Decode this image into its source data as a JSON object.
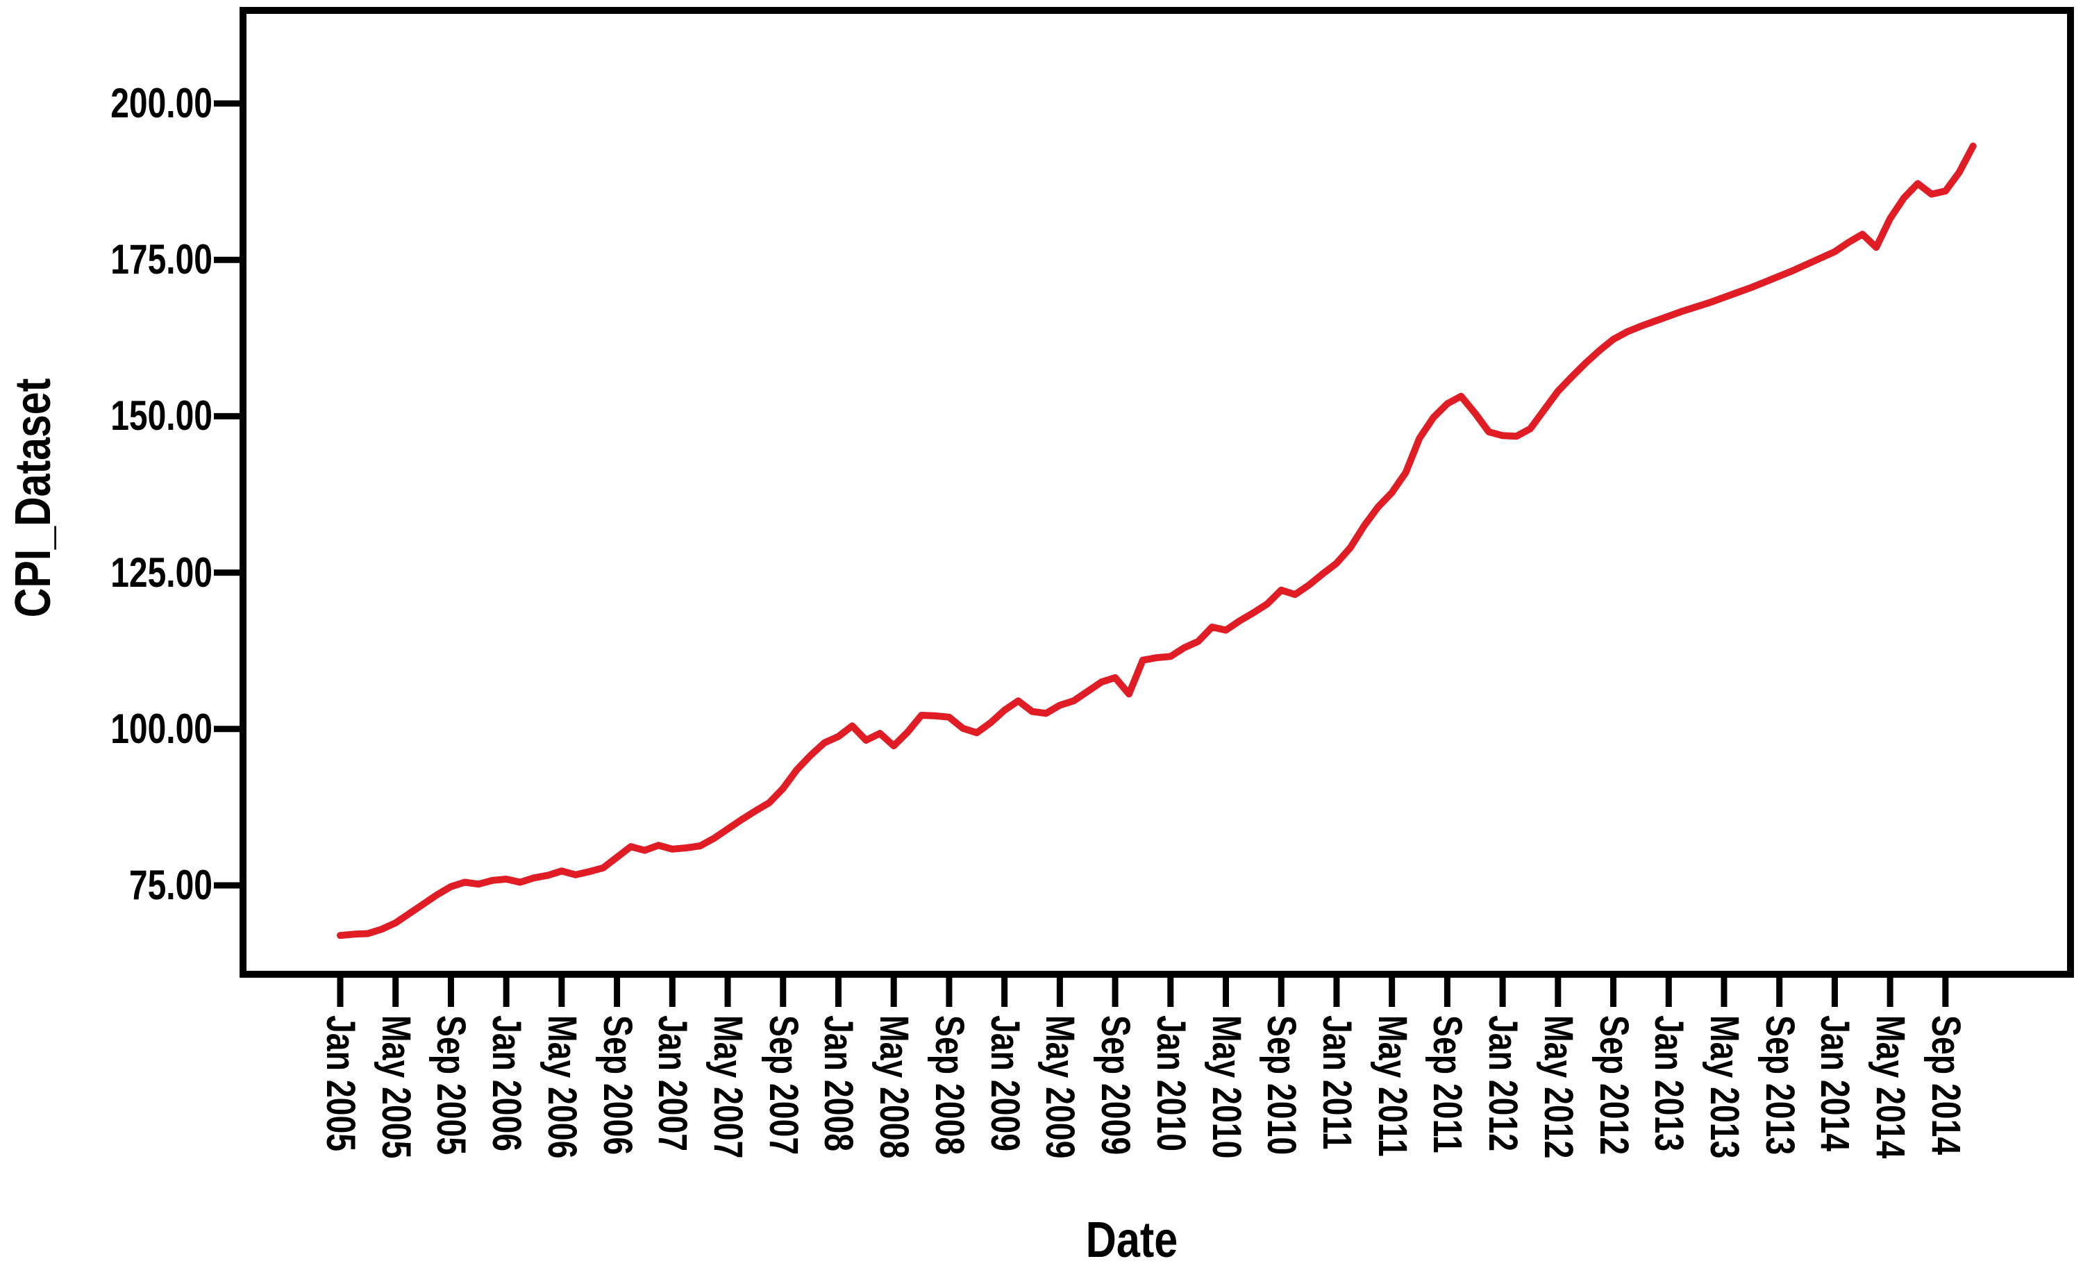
{
  "figure": {
    "background_color": "#ffffff",
    "frame_color": "#000000",
    "text_color": "#000000",
    "y_axis": {
      "title": "CPI_Dataset",
      "tick_labels": [
        "200.00",
        "175.00",
        "150.00",
        "125.00",
        "100.00",
        "75.00"
      ],
      "tick_values": [
        200,
        175,
        150,
        125,
        100,
        75
      ]
    },
    "x_axis": {
      "title": "Date",
      "tick_labels": [
        "Jan 2005",
        "May 2005",
        "Sep 2005",
        "Jan 2006",
        "May 2006",
        "Sep 2006",
        "Jan 2007",
        "May 2007",
        "Sep 2007",
        "Jan 2008",
        "May 2008",
        "Sep 2008",
        "Jan 2009",
        "May 2009",
        "Sep 2009",
        "Jan 2010",
        "May 2010",
        "Sep 2010",
        "Jan 2011",
        "May 2011",
        "Sep 2011",
        "Jan 2012",
        "May 2012",
        "Sep 2012",
        "Jan 2013",
        "May 2013",
        "Sep 2013",
        "Jan 2014",
        "May 2014",
        "Sep 2014"
      ]
    }
  },
  "chart_data": {
    "type": "line",
    "title": "",
    "xlabel": "Date",
    "ylabel": "CPI_Dataset",
    "grid": false,
    "legend": false,
    "y_ticks": [
      75,
      100,
      125,
      150,
      175,
      200
    ],
    "ylim": [
      60.8,
      215.0
    ],
    "x_tick_interval_months": 4,
    "x_range": "Jan 2005 to Nov 2014, monthly points",
    "series": [
      {
        "name": "CPI_Dataset",
        "color": "#e01c24",
        "start_month": "Jan 2005",
        "values": [
          67.0,
          67.2,
          67.3,
          68.0,
          69.0,
          70.5,
          72.0,
          73.5,
          74.8,
          75.5,
          75.2,
          75.8,
          76.0,
          75.5,
          76.2,
          76.6,
          77.3,
          76.7,
          77.2,
          77.8,
          79.5,
          81.2,
          80.6,
          81.4,
          80.8,
          81.0,
          81.3,
          82.5,
          84.0,
          85.5,
          86.9,
          88.2,
          90.5,
          93.5,
          95.8,
          97.8,
          98.8,
          100.5,
          98.2,
          99.3,
          97.3,
          99.5,
          102.2,
          102.1,
          101.9,
          100.1,
          99.4,
          101.0,
          103.0,
          104.5,
          102.8,
          102.5,
          103.8,
          104.5,
          106.0,
          107.5,
          108.2,
          105.6,
          111.0,
          111.4,
          111.6,
          113.0,
          114.0,
          116.3,
          115.8,
          117.3,
          118.6,
          120.0,
          122.2,
          121.5,
          123.0,
          124.8,
          126.5,
          129.0,
          132.5,
          135.5,
          137.8,
          141.0,
          146.5,
          149.8,
          152.0,
          153.2,
          150.5,
          147.5,
          146.9,
          146.8,
          148.0,
          151.0,
          154.0,
          156.3,
          158.5,
          160.5,
          162.3,
          163.5,
          164.4,
          165.2,
          166.0,
          166.8,
          167.5,
          168.2,
          169.0,
          169.8,
          170.6,
          171.5,
          172.4,
          173.3,
          174.3,
          175.3,
          176.3,
          177.8,
          179.1,
          177.0,
          181.6,
          184.9,
          187.2,
          185.5,
          186.0,
          189.0,
          193.2
        ]
      }
    ]
  }
}
